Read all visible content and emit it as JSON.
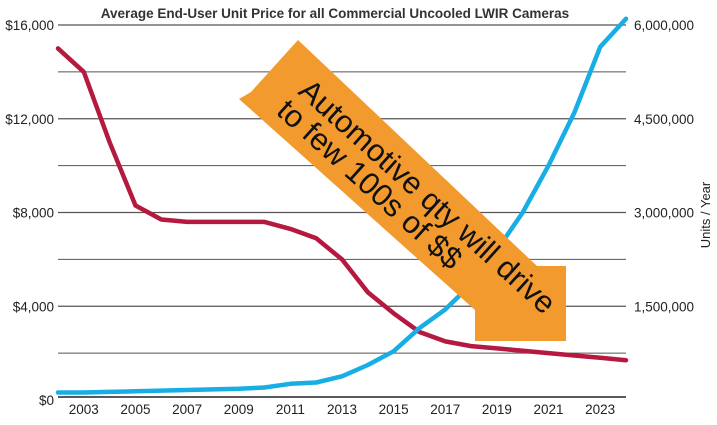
{
  "chart_data": {
    "type": "line",
    "title": "Average End-User Unit Price for all Commercial Uncooled LWIR Cameras",
    "xlabel": "",
    "ylabel_left": "",
    "ylabel_right": "Units / Year",
    "x": [
      2002,
      2003,
      2004,
      2005,
      2006,
      2007,
      2008,
      2009,
      2010,
      2011,
      2012,
      2013,
      2014,
      2015,
      2016,
      2017,
      2018,
      2019,
      2020,
      2021,
      2022,
      2023,
      2024
    ],
    "x_tick_labels": [
      "2003",
      "2005",
      "2007",
      "2009",
      "2011",
      "2013",
      "2015",
      "2017",
      "2019",
      "2021",
      "2023"
    ],
    "x_tick_values": [
      2003,
      2005,
      2007,
      2009,
      2011,
      2013,
      2015,
      2017,
      2019,
      2021,
      2023
    ],
    "xlim": [
      2002,
      2024
    ],
    "y_left_ticks": [
      "$0",
      "$4,000",
      "$8,000",
      "$12,000",
      "$16,000"
    ],
    "y_left_tick_values": [
      0,
      4000,
      8000,
      12000,
      16000
    ],
    "ylim_left": [
      0,
      16000
    ],
    "y_right_ticks": [
      "1,500,000",
      "3,000,000",
      "4,500,000",
      "6,000,000"
    ],
    "y_right_tick_values": [
      1500000,
      3000000,
      4500000,
      6000000
    ],
    "ylim_right": [
      0,
      6000000
    ],
    "grid": true,
    "series": [
      {
        "axis": "left",
        "color": "#b5193f",
        "x": [
          2002,
          2003,
          2004,
          2005,
          2006,
          2007,
          2008,
          2009,
          2010,
          2011,
          2012,
          2013,
          2014,
          2015,
          2016,
          2017,
          2018,
          2019,
          2020,
          2021,
          2022,
          2023,
          2024
        ],
        "values": [
          15000,
          14000,
          11000,
          8300,
          7700,
          7600,
          7600,
          7600,
          7600,
          7300,
          6900,
          6000,
          4600,
          3700,
          2900,
          2500,
          2300,
          2200,
          2100,
          2000,
          1900,
          1800,
          1700
        ]
      },
      {
        "axis": "right",
        "color": "#17aee6",
        "x": [
          2002,
          2003,
          2004,
          2005,
          2006,
          2007,
          2008,
          2009,
          2010,
          2011,
          2012,
          2013,
          2014,
          2015,
          2016,
          2017,
          2018,
          2019,
          2020,
          2021,
          2022,
          2023,
          2024
        ],
        "values": [
          120000,
          120000,
          130000,
          140000,
          150000,
          160000,
          170000,
          180000,
          200000,
          260000,
          280000,
          380000,
          560000,
          780000,
          1150000,
          1450000,
          1850000,
          2400000,
          3000000,
          3750000,
          4600000,
          5650000,
          6100000
        ]
      }
    ],
    "annotation": {
      "lines": [
        "Automotive qty will drive",
        "to few 100s of $$"
      ],
      "color": "#f29a2e"
    }
  }
}
